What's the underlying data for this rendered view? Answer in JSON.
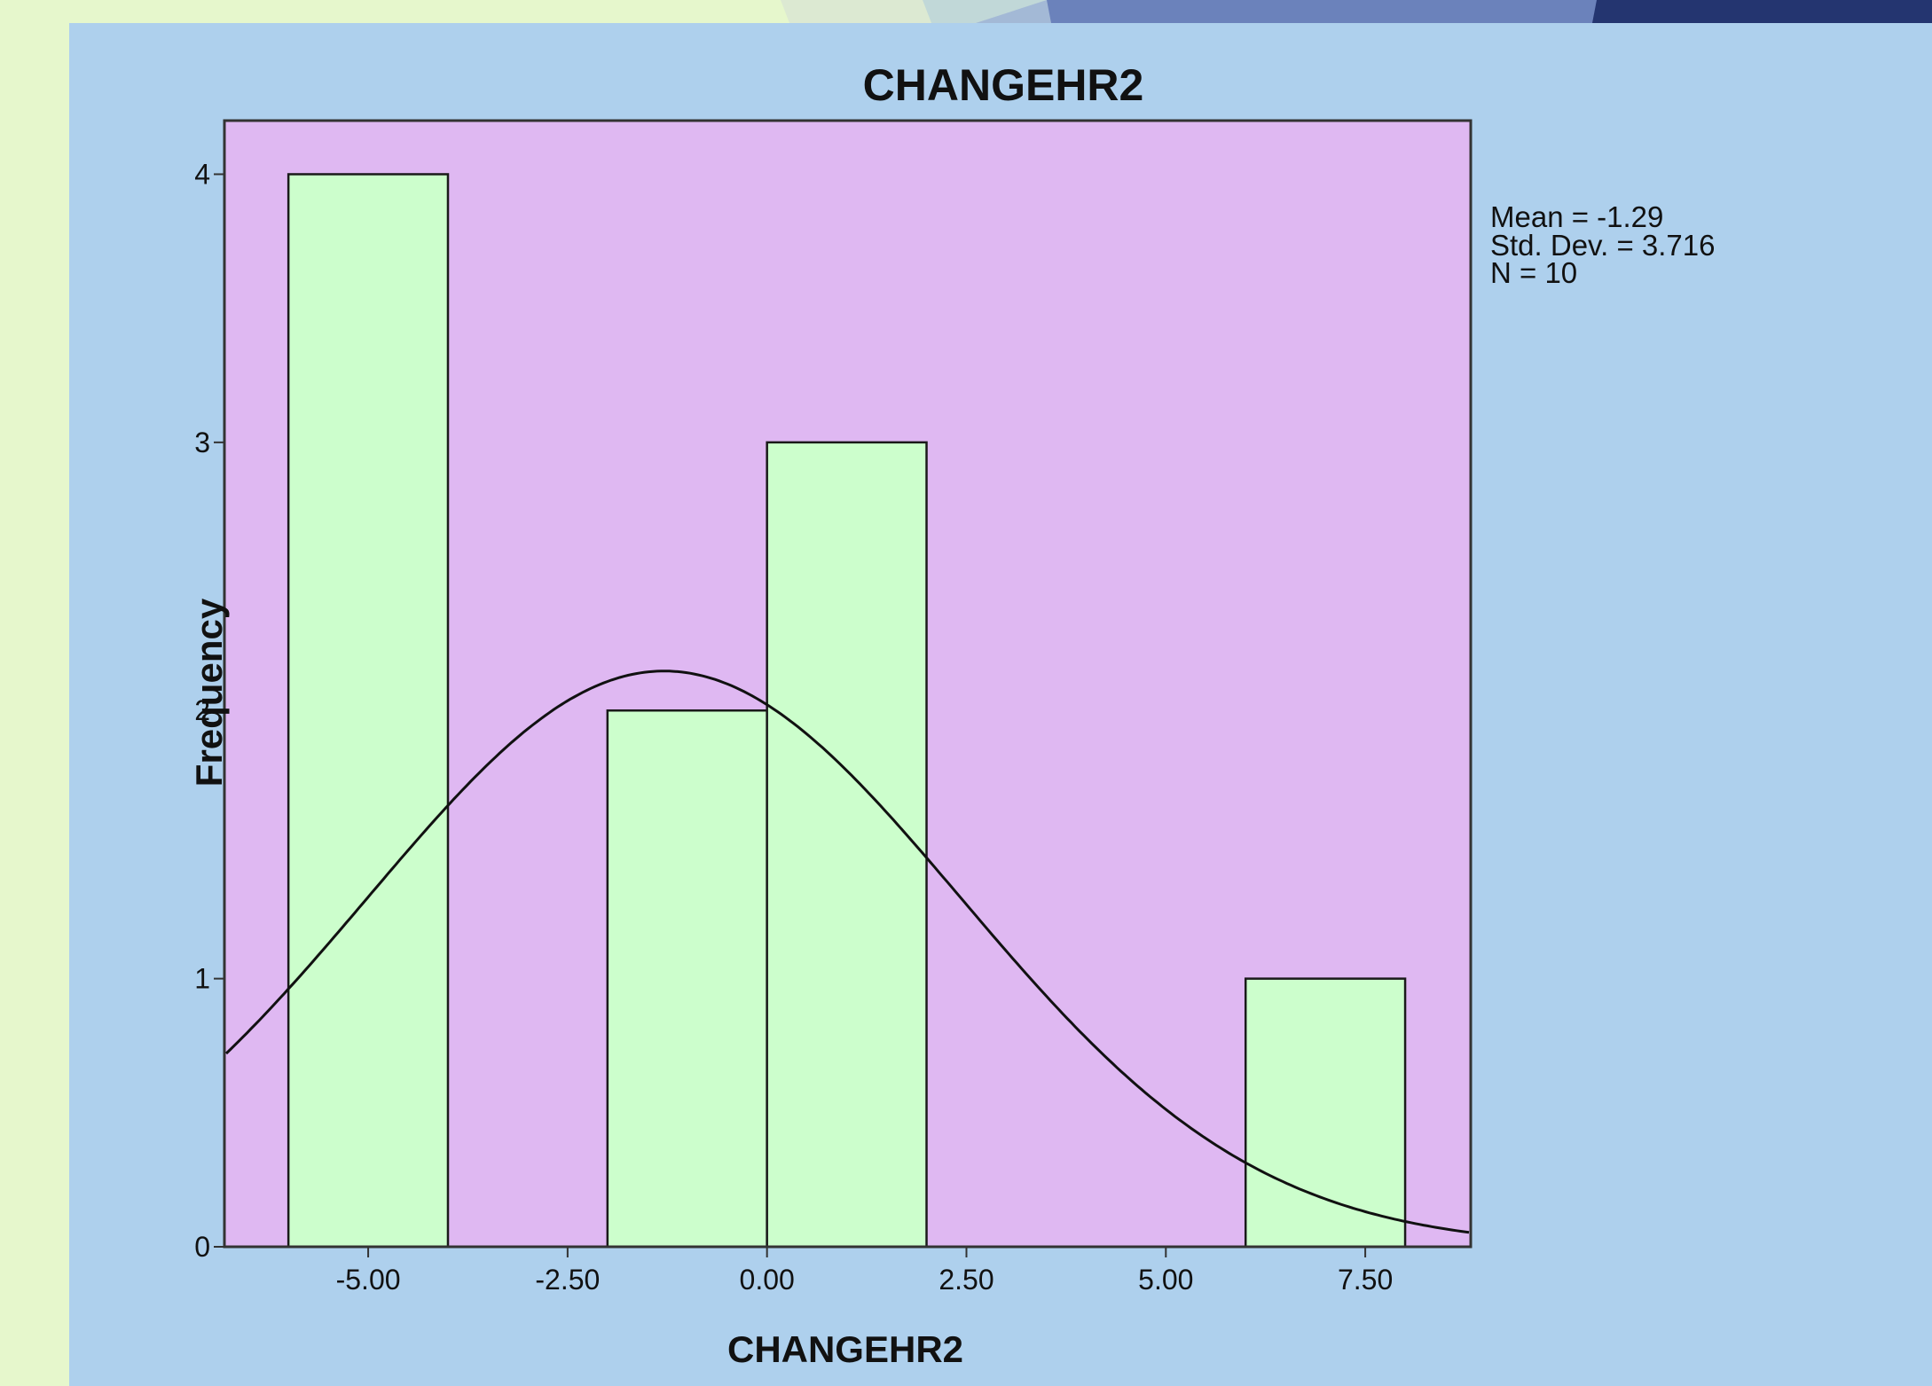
{
  "chart_data": {
    "type": "bar",
    "title": "CHANGEHR2",
    "xlabel": "CHANGEHR2",
    "ylabel": "Frequency",
    "bins": [
      {
        "start": -6,
        "end": -4,
        "count": 4
      },
      {
        "start": -4,
        "end": -2,
        "count": 0
      },
      {
        "start": -2,
        "end": 0,
        "count": 2
      },
      {
        "start": 0,
        "end": 2,
        "count": 3
      },
      {
        "start": 2,
        "end": 4,
        "count": 0
      },
      {
        "start": 4,
        "end": 6,
        "count": 0
      },
      {
        "start": 6,
        "end": 8,
        "count": 1
      }
    ],
    "x_ticks": [
      -5,
      -2.5,
      0,
      2.5,
      5,
      7.5
    ],
    "x_tick_labels": [
      "-5.00",
      "-2.50",
      "0.00",
      "2.50",
      "5.00",
      "7.50"
    ],
    "y_ticks": [
      0,
      1,
      2,
      3,
      4
    ],
    "y_tick_labels": [
      "0",
      "1",
      "2",
      "3",
      "4"
    ],
    "xlim": [
      -6.78,
      8.8
    ],
    "ylim": [
      0,
      4.2
    ],
    "normal_curve": {
      "mean": -1.29,
      "std_dev": 3.716,
      "n": 10,
      "bin_width": 2
    },
    "stats": [
      "Mean = -1.29",
      "Std. Dev. = 3.716",
      "N = 10"
    ],
    "colors": {
      "plot_background": "#dfb8f2",
      "bar_fill": "#ccfecc",
      "bar_stroke": "#1a1a1a",
      "panel_background": "#aed0ed",
      "page_background": "#e6f7cc",
      "curve": "#111111"
    }
  }
}
